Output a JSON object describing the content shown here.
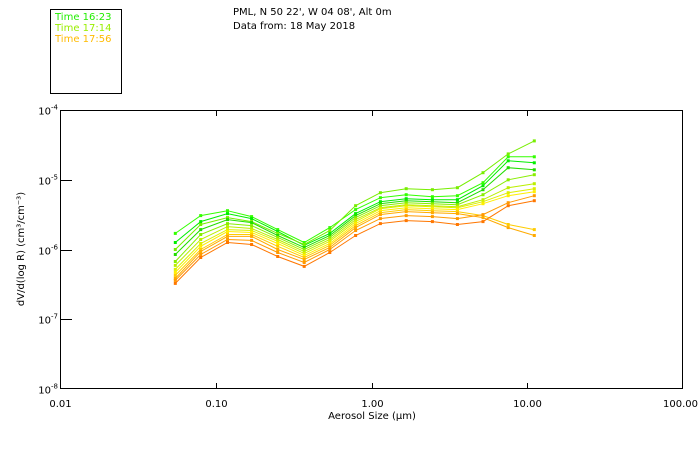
{
  "header": {
    "location": "PML, N 50 22', W 04 08', Alt 0m",
    "date_line": "Data from: 18 May 2018"
  },
  "legend": [
    {
      "label": "Time 16:23",
      "color": "#22ee00"
    },
    {
      "label": "Time 17:14",
      "color": "#99ee00"
    },
    {
      "label": "Time 17:56",
      "color": "#ffbb00"
    }
  ],
  "chart_data": {
    "type": "line",
    "title": "PML, N 50 22', W 04 08', Alt 0m",
    "xlabel": "Aerosol Size (μm)",
    "ylabel": "dV/d(log R) (cm³/cm⁻³)",
    "xscale": "log",
    "yscale": "log",
    "xlim": [
      0.01,
      100
    ],
    "ylim": [
      1e-08,
      0.0001
    ],
    "grid": false,
    "legend_placement": "top-left",
    "x_ticks": [
      {
        "value": 0.01,
        "label": "0.01"
      },
      {
        "value": 0.1,
        "label": "0.10"
      },
      {
        "value": 1,
        "label": "1.00"
      },
      {
        "value": 10,
        "label": "10.00"
      },
      {
        "value": 100,
        "label": "100.00"
      }
    ],
    "y_ticks": [
      {
        "value": 0.0001,
        "base": "10",
        "exp": "-4"
      },
      {
        "value": 1e-05,
        "base": "10",
        "exp": "-5"
      },
      {
        "value": 1e-06,
        "base": "10",
        "exp": "-6"
      },
      {
        "value": 1e-07,
        "base": "10",
        "exp": "-7"
      },
      {
        "value": 1e-08,
        "base": "10",
        "exp": "-8"
      }
    ],
    "x": [
      0.055,
      0.08,
      0.119,
      0.17,
      0.25,
      0.37,
      0.54,
      0.79,
      1.14,
      1.67,
      2.46,
      3.56,
      5.2,
      7.55,
      11.1
    ],
    "series": [
      {
        "color": "#33ff00",
        "values": [
          1.7e-06,
          3.06e-06,
          3.6e-06,
          2.96e-06,
          1.93e-06,
          1.26e-06,
          2.06e-06,
          3.73e-06,
          5.53e-06,
          6.1e-06,
          5.72e-06,
          5.91e-06,
          9.06e-06,
          2.13e-05,
          2.13e-05
        ]
      },
      {
        "color": "#00ee00",
        "values": [
          1.26e-06,
          2.51e-06,
          3.27e-06,
          2.77e-06,
          1.81e-06,
          1.15e-06,
          1.7e-06,
          3.27e-06,
          4.85e-06,
          5.35e-06,
          5.18e-06,
          5.18e-06,
          8.21e-06,
          1.87e-05,
          1.75e-05
        ]
      },
      {
        "color": "#77ee00",
        "values": [
          1e-06,
          2.28e-06,
          2.87e-06,
          2.51e-06,
          1.7e-06,
          1.18e-06,
          1.87e-06,
          4.25e-06,
          6.52e-06,
          7.44e-06,
          7.2e-06,
          7.69e-06,
          1.26e-05,
          2.35e-05,
          3.6e-05
        ]
      },
      {
        "color": "#22dd00",
        "values": [
          8.48e-07,
          1.93e-06,
          2.68e-06,
          2.43e-06,
          1.59e-06,
          1.07e-06,
          1.59e-06,
          3.06e-06,
          4.54e-06,
          5.01e-06,
          4.85e-06,
          4.69e-06,
          7.2e-06,
          1.49e-05,
          1.39e-05
        ]
      },
      {
        "color": "#88ee00",
        "values": [
          6.74e-07,
          1.64e-06,
          2.35e-06,
          2.2e-06,
          1.49e-06,
          1e-06,
          1.49e-06,
          2.87e-06,
          4.25e-06,
          4.69e-06,
          4.54e-06,
          4.39e-06,
          6.1e-06,
          1e-05,
          1.18e-05
        ]
      },
      {
        "color": "#bbee00",
        "values": [
          5.91e-07,
          1.39e-06,
          2.13e-06,
          2e-06,
          1.39e-06,
          9.36e-07,
          1.39e-06,
          2.68e-06,
          3.98e-06,
          4.39e-06,
          4.25e-06,
          4.11e-06,
          5.18e-06,
          7.69e-06,
          8.77e-06
        ]
      },
      {
        "color": "#ddee00",
        "values": [
          5.18e-07,
          1.22e-06,
          1.93e-06,
          1.87e-06,
          1.31e-06,
          8.77e-07,
          1.31e-06,
          2.51e-06,
          3.85e-06,
          4.25e-06,
          4.11e-06,
          3.98e-06,
          4.85e-06,
          6.52e-06,
          7.44e-06
        ]
      },
      {
        "color": "#ffee00",
        "values": [
          4.69e-07,
          1.11e-06,
          1.81e-06,
          1.75e-06,
          1.22e-06,
          8.21e-07,
          1.22e-06,
          2.35e-06,
          3.6e-06,
          3.98e-06,
          3.85e-06,
          3.73e-06,
          4.54e-06,
          5.91e-06,
          6.74e-06
        ]
      },
      {
        "color": "#ffcc00",
        "values": [
          4.25e-07,
          1e-06,
          1.64e-06,
          1.64e-06,
          1.11e-06,
          7.69e-07,
          1.15e-06,
          2.2e-06,
          3.37e-06,
          3.73e-06,
          3.6e-06,
          3.49e-06,
          3.06e-06,
          2.28e-06,
          1.93e-06
        ]
      },
      {
        "color": "#ffaa00",
        "values": [
          3.85e-07,
          9.36e-07,
          1.54e-06,
          1.54e-06,
          1e-06,
          7.2e-07,
          1.07e-06,
          2.06e-06,
          3.16e-06,
          3.49e-06,
          3.37e-06,
          3.27e-06,
          2.87e-06,
          2.06e-06,
          1.59e-06
        ]
      },
      {
        "color": "#ff9900",
        "values": [
          3.6e-07,
          8.48e-07,
          1.39e-06,
          1.35e-06,
          9.06e-07,
          6.52e-07,
          1e-06,
          1.87e-06,
          2.77e-06,
          3.06e-06,
          2.96e-06,
          2.77e-06,
          3.16e-06,
          4.69e-06,
          5.91e-06
        ]
      },
      {
        "color": "#ff7700",
        "values": [
          3.27e-07,
          7.69e-07,
          1.26e-06,
          1.18e-06,
          7.94e-07,
          5.72e-07,
          9.06e-07,
          1.59e-06,
          2.35e-06,
          2.6e-06,
          2.51e-06,
          2.28e-06,
          2.51e-06,
          4.25e-06,
          5.01e-06
        ]
      }
    ]
  }
}
